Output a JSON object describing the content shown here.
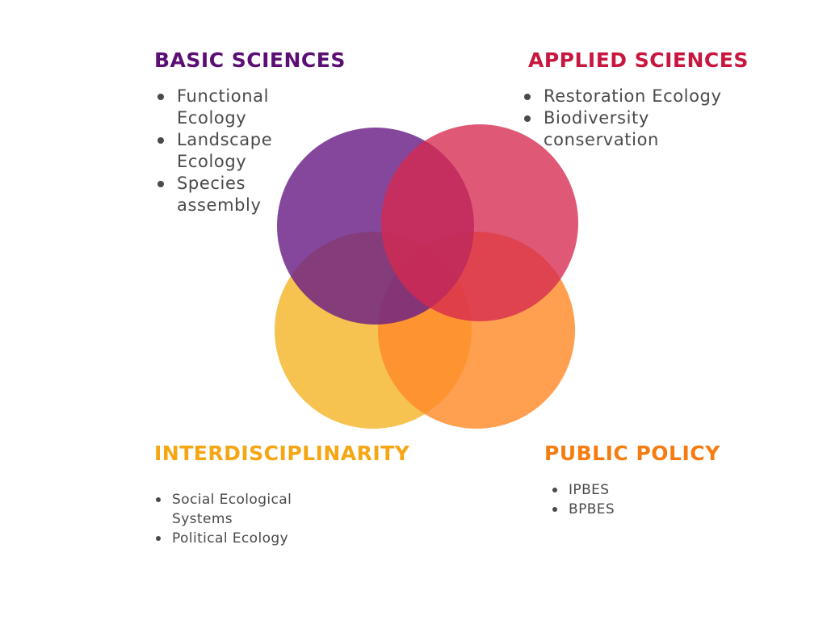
{
  "colors": {
    "basic": "#5b0f74",
    "applied": "#c8173f",
    "interdisciplinarity": "#f5a612",
    "policy": "#f57c10",
    "text": "#4a4a4a"
  },
  "basic_sciences": {
    "title": "BASIC SCIENCES",
    "items": [
      "Functional Ecology",
      "Landscape Ecology",
      "Species assembly"
    ]
  },
  "applied_sciences": {
    "title": "APPLIED SCIENCES",
    "items": [
      "Restoration Ecology",
      "Biodiversity conservation"
    ]
  },
  "interdisciplinarity": {
    "title": "INTERDISCIPLINARITY",
    "items": [
      "Social Ecological Systems",
      "Political Ecology"
    ]
  },
  "public_policy": {
    "title": "PUBLIC POLICY",
    "items": [
      "IPBES",
      "BPBES"
    ]
  },
  "venn": {
    "circles": [
      {
        "name": "interdisciplinarity-circle",
        "color": "#f5b731",
        "opacity": 0.85
      },
      {
        "name": "policy-circle",
        "color": "#ff8a2a",
        "opacity": 0.82
      },
      {
        "name": "basic-sciences-circle",
        "color": "#6a1f85",
        "opacity": 0.82
      },
      {
        "name": "applied-sciences-circle",
        "color": "#d6294f",
        "opacity": 0.78
      }
    ]
  }
}
